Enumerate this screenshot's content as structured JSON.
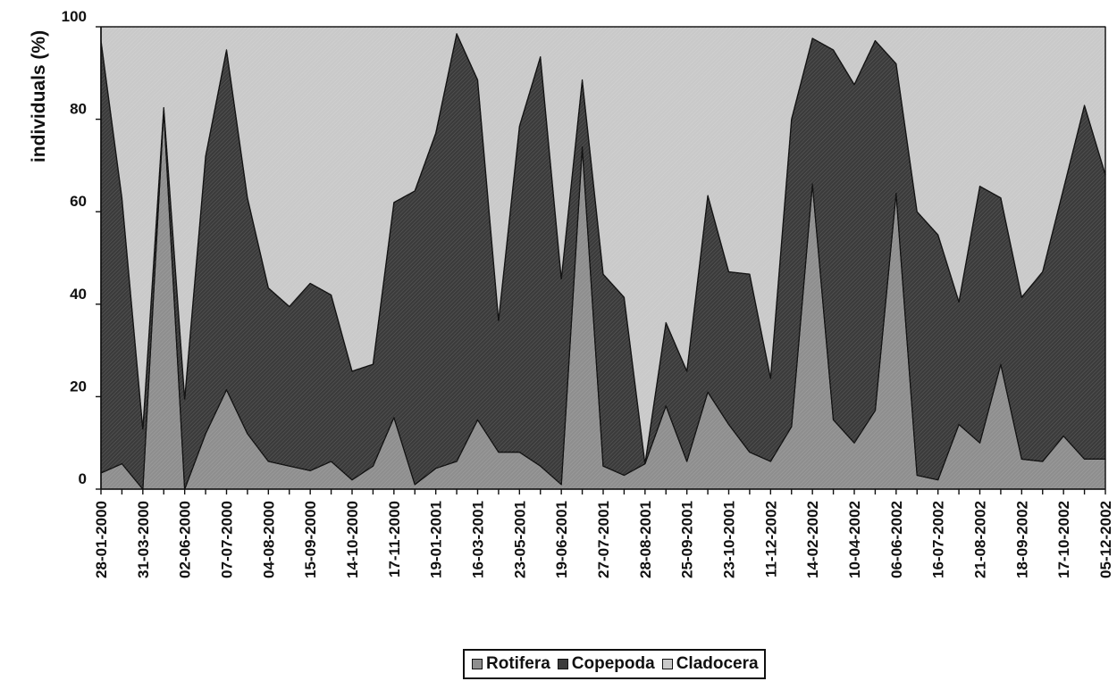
{
  "chart_data": {
    "type": "area",
    "stacked": true,
    "percent_stacked": true,
    "title": "",
    "xlabel": "",
    "ylabel": "individuals (%)",
    "ylim": [
      0,
      100
    ],
    "yticks": [
      0,
      20,
      40,
      60,
      80,
      100
    ],
    "grid": false,
    "legend_position": "bottom-center",
    "x_tick_labels": [
      "28-01-2000",
      "31-03-2000",
      "02-06-2000",
      "07-07-2000",
      "04-08-2000",
      "15-09-2000",
      "14-10-2000",
      "17-11-2000",
      "19-01-2001",
      "16-03-2001",
      "23-05-2001",
      "19-06-2001",
      "27-07-2001",
      "28-08-2001",
      "25-09-2001",
      "23-10-2001",
      "11-12-2002",
      "14-02-2002",
      "10-04-2002",
      "06-06-2002",
      "16-07-2002",
      "21-08-2002",
      "18-09-2002",
      "17-10-2002",
      "05-12-2002"
    ],
    "x_tick_label_every": 2,
    "series": [
      {
        "name": "Rotifera",
        "color": "#8e8e8e",
        "values": [
          3.5,
          5.5,
          0,
          82,
          0,
          12,
          21.5,
          12,
          6,
          5,
          4,
          6,
          2,
          5,
          15.5,
          1,
          4.5,
          6,
          15,
          8,
          8,
          5,
          1,
          74,
          5,
          3,
          5.5,
          18,
          6,
          21,
          14,
          8,
          6,
          13.5,
          66,
          15,
          10,
          17,
          64,
          3,
          2,
          14,
          10,
          27,
          6.5,
          6,
          11.5,
          6.5,
          6.5
        ]
      },
      {
        "name": "Copepoda",
        "color": "#3b3b3b",
        "values": [
          93.5,
          57.5,
          13,
          0.5,
          19.5,
          60,
          73.5,
          51,
          37.5,
          34.5,
          40.5,
          36,
          23.5,
          22,
          46.5,
          63.5,
          72.5,
          92.5,
          73.5,
          28.5,
          70.5,
          88.5,
          44.5,
          14.5,
          41.5,
          38.5,
          0,
          18,
          19.5,
          42.5,
          33,
          38.5,
          18,
          66.5,
          31.5,
          80,
          77.5,
          80,
          28,
          57,
          53,
          26.5,
          55.5,
          36,
          35,
          41,
          53.5,
          76.5,
          61.5
        ]
      },
      {
        "name": "Cladocera",
        "color": "#c9c9c9",
        "values": [
          3,
          37,
          87,
          17.5,
          80.5,
          28,
          5,
          37,
          56.5,
          60.5,
          55.5,
          58,
          74.5,
          73,
          38,
          35.5,
          23,
          1.5,
          11.5,
          63.5,
          21.5,
          6.5,
          54.5,
          11.5,
          53.5,
          58.5,
          94.5,
          64,
          74.5,
          36.5,
          53,
          53.5,
          76,
          20,
          2.5,
          5,
          12.5,
          3,
          8,
          40,
          45,
          59.5,
          34.5,
          37,
          58.5,
          53,
          35,
          17,
          32
        ]
      }
    ]
  }
}
